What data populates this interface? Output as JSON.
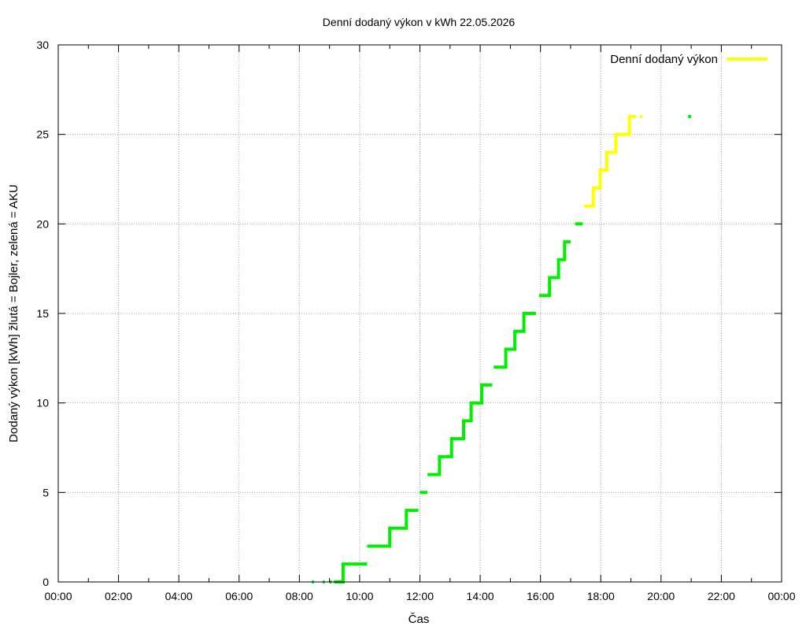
{
  "chart_data": {
    "type": "line",
    "title": "Denní dodaný výkon v kWh 22.05.2026",
    "xlabel": "Čas",
    "ylabel": "Dodaný výkon [kWh]  žlutá = Bojler, zelená = AKU",
    "xlim": [
      0,
      24
    ],
    "ylim": [
      0,
      30
    ],
    "x_ticks": [
      "00:00",
      "02:00",
      "04:00",
      "06:00",
      "08:00",
      "10:00",
      "12:00",
      "14:00",
      "16:00",
      "18:00",
      "20:00",
      "22:00",
      "00:00"
    ],
    "y_ticks": [
      0,
      5,
      10,
      15,
      20,
      25,
      30
    ],
    "grid": true,
    "legend_position": "top-right",
    "legend": [
      {
        "label": "Denní dodaný výkon",
        "color": "#ffff00"
      }
    ],
    "series": [
      {
        "color": "#00ee00",
        "segments": [
          [
            [
              8.42,
              0
            ],
            [
              8.48,
              0
            ]
          ],
          [
            [
              8.78,
              0
            ],
            [
              8.84,
              0
            ]
          ],
          [
            [
              9.0,
              0
            ],
            [
              9.07,
              0
            ]
          ],
          [
            [
              9.15,
              0
            ],
            [
              9.45,
              0
            ],
            [
              9.45,
              1
            ],
            [
              10.25,
              1
            ]
          ],
          [
            [
              10.25,
              2
            ],
            [
              11.0,
              2
            ],
            [
              11.0,
              3
            ],
            [
              11.55,
              3
            ],
            [
              11.55,
              4
            ],
            [
              11.95,
              4
            ]
          ],
          [
            [
              12.0,
              5
            ],
            [
              12.25,
              5
            ]
          ],
          [
            [
              12.25,
              6
            ],
            [
              12.65,
              6
            ],
            [
              12.65,
              7
            ],
            [
              13.05,
              7
            ],
            [
              13.05,
              8
            ],
            [
              13.45,
              8
            ],
            [
              13.45,
              9
            ],
            [
              13.7,
              9
            ],
            [
              13.7,
              10
            ],
            [
              14.05,
              10
            ],
            [
              14.05,
              11
            ],
            [
              14.4,
              11
            ]
          ],
          [
            [
              14.45,
              12
            ],
            [
              14.85,
              12
            ],
            [
              14.85,
              13
            ],
            [
              15.15,
              13
            ],
            [
              15.15,
              14
            ],
            [
              15.45,
              14
            ],
            [
              15.45,
              15
            ],
            [
              15.85,
              15
            ]
          ],
          [
            [
              15.95,
              16
            ],
            [
              16.3,
              16
            ],
            [
              16.3,
              17
            ],
            [
              16.6,
              17
            ],
            [
              16.6,
              18
            ],
            [
              16.8,
              18
            ],
            [
              16.8,
              19
            ],
            [
              17.0,
              19
            ]
          ],
          [
            [
              17.15,
              20
            ],
            [
              17.4,
              20
            ]
          ],
          [
            [
              20.9,
              26
            ],
            [
              21.0,
              26
            ]
          ]
        ]
      },
      {
        "color": "#ffff00",
        "segments": [
          [
            [
              17.45,
              21
            ],
            [
              17.75,
              21
            ],
            [
              17.75,
              22
            ],
            [
              17.98,
              22
            ],
            [
              17.98,
              23
            ],
            [
              18.2,
              23
            ],
            [
              18.2,
              24
            ],
            [
              18.5,
              24
            ],
            [
              18.5,
              25
            ],
            [
              18.95,
              25
            ],
            [
              18.95,
              26
            ],
            [
              19.18,
              26
            ]
          ],
          [
            [
              19.3,
              26
            ],
            [
              19.38,
              26
            ]
          ]
        ]
      }
    ]
  }
}
